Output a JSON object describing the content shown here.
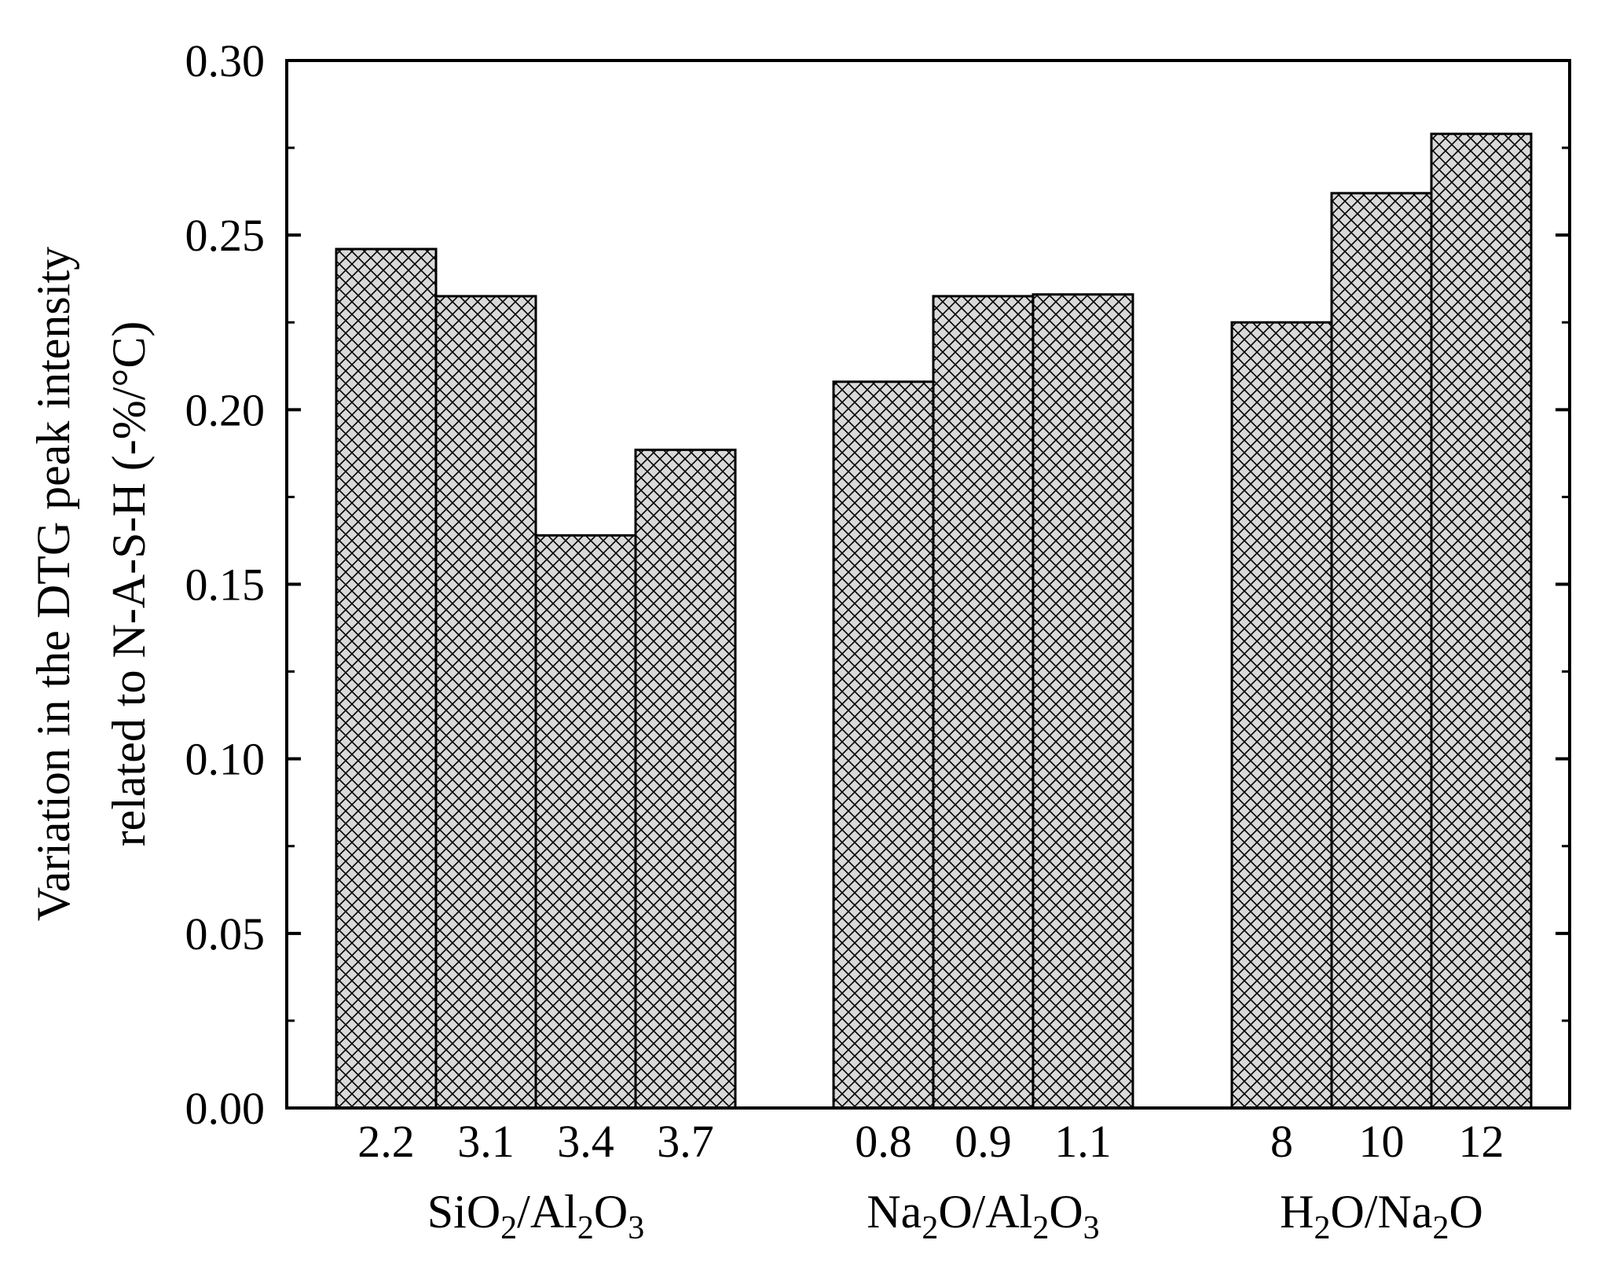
{
  "chart_data": {
    "type": "bar",
    "ylabel_lines": [
      "Variation in the DTG peak intensity",
      "related to N-A-S-H  (-%/°C)"
    ],
    "ylim": [
      0,
      0.3
    ],
    "yticks": [
      "0.00",
      "0.05",
      "0.10",
      "0.15",
      "0.20",
      "0.25",
      "0.30"
    ],
    "grid": false,
    "bar_fill": "#d9d9d9",
    "hatch": "crosshatch",
    "groups": [
      {
        "label_parts": [
          [
            "SiO",
            "n"
          ],
          [
            "2",
            "sub"
          ],
          [
            "/Al",
            "n"
          ],
          [
            "2",
            "sub"
          ],
          [
            "O",
            "n"
          ],
          [
            "3",
            "sub"
          ]
        ],
        "categories": [
          "2.2",
          "3.1",
          "3.4",
          "3.7"
        ],
        "values": [
          0.246,
          0.2325,
          0.164,
          0.1885
        ]
      },
      {
        "label_parts": [
          [
            "Na",
            "n"
          ],
          [
            "2",
            "sub"
          ],
          [
            "O/Al",
            "n"
          ],
          [
            "2",
            "sub"
          ],
          [
            "O",
            "n"
          ],
          [
            "3",
            "sub"
          ]
        ],
        "categories": [
          "0.8",
          "0.9",
          "1.1"
        ],
        "values": [
          0.208,
          0.2325,
          0.233
        ]
      },
      {
        "label_parts": [
          [
            "H",
            "n"
          ],
          [
            "2",
            "sub"
          ],
          [
            "O/Na",
            "n"
          ],
          [
            "2",
            "sub"
          ],
          [
            "O",
            "n"
          ]
        ],
        "categories": [
          "8",
          "10",
          "12"
        ],
        "values": [
          0.225,
          0.262,
          0.279
        ]
      }
    ]
  }
}
